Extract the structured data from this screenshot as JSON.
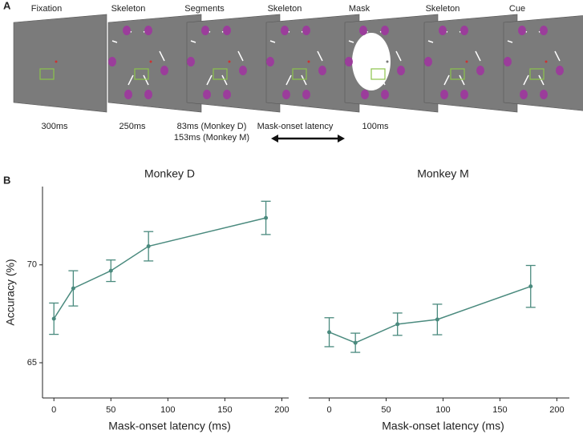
{
  "panel_a": {
    "label": "A",
    "frames": [
      "Fixation",
      "Skeleton",
      "Segments",
      "Skeleton",
      "Mask",
      "Skeleton",
      "Cue"
    ],
    "durations": [
      "300ms",
      "250ms",
      "83ms (Monkey D)",
      "153ms (Monkey M)",
      "Mask-onset latency",
      "100ms"
    ]
  },
  "panel_b": {
    "label": "B"
  },
  "chart_data": [
    {
      "type": "line",
      "title": "Monkey D",
      "xlabel": "Mask-onset latency (ms)",
      "ylabel": "Accuracy (%)",
      "x": [
        0,
        17,
        50,
        83,
        186
      ],
      "series": [
        {
          "color": "#4a8a7e",
          "values": [
            67.25,
            68.8,
            69.7,
            70.95,
            72.4
          ],
          "errors": [
            0.8,
            0.9,
            0.55,
            0.75,
            0.85
          ]
        }
      ],
      "xlim": [
        -10,
        206
      ],
      "ylim": [
        63.2,
        74
      ],
      "xticks": [
        0,
        50,
        100,
        150,
        200
      ],
      "yticks": [
        65,
        70
      ]
    },
    {
      "type": "line",
      "title": "Monkey M",
      "xlabel": "Mask-onset latency (ms)",
      "x": [
        0,
        23,
        60,
        95,
        177
      ],
      "series": [
        {
          "color": "#4a8a7e",
          "values": [
            66.56,
            66.02,
            66.97,
            67.21,
            68.9
          ],
          "errors": [
            0.74,
            0.49,
            0.57,
            0.78,
            1.07
          ]
        }
      ],
      "xlim": [
        -18,
        211
      ],
      "ylim": [
        63.2,
        74
      ],
      "xticks": [
        0,
        50,
        100,
        150,
        200
      ]
    }
  ]
}
